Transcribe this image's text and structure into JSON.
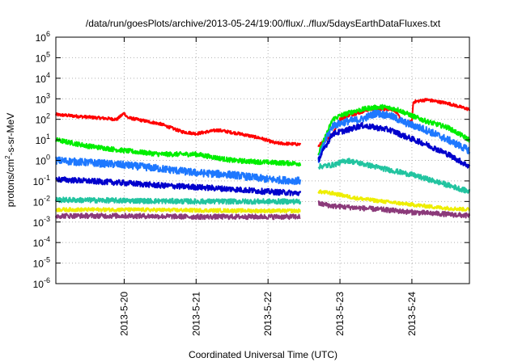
{
  "chart_data": {
    "type": "line",
    "title": "/data/run/goesPlots/archive/2013-05-24/19:00/flux/../flux/5daysEarthDataFluxes.txt",
    "xlabel": "Coordinated Universal Time (UTC)",
    "ylabel": {
      "base": "protons/cm",
      "sup": "2",
      "rest": "-s-sr-MeV"
    },
    "y_scale": "log",
    "y_exponent_range": [
      -6,
      6
    ],
    "y_ticks": [
      {
        "exp": -6,
        "base": "10",
        "sup": "-6"
      },
      {
        "exp": -5,
        "base": "10",
        "sup": "-5"
      },
      {
        "exp": -4,
        "base": "10",
        "sup": "-4"
      },
      {
        "exp": -3,
        "base": "10",
        "sup": "-3"
      },
      {
        "exp": -2,
        "base": "10",
        "sup": "-2"
      },
      {
        "exp": -1,
        "base": "10",
        "sup": "-1"
      },
      {
        "exp": 0,
        "base": "10",
        "sup": "0"
      },
      {
        "exp": 1,
        "base": "10",
        "sup": "1"
      },
      {
        "exp": 2,
        "base": "10",
        "sup": "2"
      },
      {
        "exp": 3,
        "base": "10",
        "sup": "3"
      },
      {
        "exp": 4,
        "base": "10",
        "sup": "4"
      },
      {
        "exp": 5,
        "base": "10",
        "sup": "5"
      },
      {
        "exp": 6,
        "base": "10",
        "sup": "6"
      }
    ],
    "x_range_days": [
      -0.95,
      4.8
    ],
    "x_ticks": [
      {
        "day": 0,
        "label": "2013-5-20"
      },
      {
        "day": 1,
        "label": "2013-5-21"
      },
      {
        "day": 2,
        "label": "2013-5-22"
      },
      {
        "day": 3,
        "label": "2013-5-23"
      },
      {
        "day": 4,
        "label": "2013-5-24"
      }
    ],
    "grid": true,
    "data_gap_days": [
      2.45,
      2.7
    ],
    "series": [
      {
        "color": "#ff0000",
        "noise": 0.05,
        "points": [
          [
            -0.95,
            170
          ],
          [
            -0.1,
            100
          ],
          [
            0.0,
            200
          ],
          [
            0.05,
            120
          ],
          [
            0.5,
            60
          ],
          [
            0.8,
            25
          ],
          [
            1.0,
            20
          ],
          [
            1.3,
            30
          ],
          [
            1.6,
            20
          ],
          [
            1.9,
            12
          ],
          [
            2.1,
            7
          ],
          [
            2.45,
            6
          ],
          [
            2.7,
            5
          ],
          [
            2.9,
            20
          ],
          [
            3.0,
            100
          ],
          [
            3.1,
            150
          ],
          [
            3.25,
            200
          ],
          [
            3.4,
            300
          ],
          [
            3.6,
            320
          ],
          [
            3.75,
            300
          ],
          [
            3.85,
            100
          ],
          [
            3.92,
            60
          ],
          [
            4.0,
            80
          ],
          [
            4.02,
            700
          ],
          [
            4.2,
            900
          ],
          [
            4.5,
            600
          ],
          [
            4.8,
            300
          ]
        ]
      },
      {
        "color": "#00ee00",
        "noise": 0.07,
        "points": [
          [
            -0.95,
            10
          ],
          [
            -0.5,
            5
          ],
          [
            0.0,
            3
          ],
          [
            0.5,
            2
          ],
          [
            1.0,
            2
          ],
          [
            1.5,
            1
          ],
          [
            2.0,
            0.8
          ],
          [
            2.45,
            0.7
          ],
          [
            2.7,
            2
          ],
          [
            2.8,
            15
          ],
          [
            2.9,
            100
          ],
          [
            3.0,
            150
          ],
          [
            3.2,
            250
          ],
          [
            3.4,
            350
          ],
          [
            3.6,
            400
          ],
          [
            3.8,
            300
          ],
          [
            4.0,
            150
          ],
          [
            4.2,
            80
          ],
          [
            4.5,
            40
          ],
          [
            4.8,
            10
          ]
        ]
      },
      {
        "color": "#1e78ff",
        "noise": 0.1,
        "points": [
          [
            -0.95,
            1
          ],
          [
            0.0,
            0.6
          ],
          [
            0.5,
            0.4
          ],
          [
            1.0,
            0.25
          ],
          [
            1.5,
            0.2
          ],
          [
            2.0,
            0.12
          ],
          [
            2.45,
            0.1
          ],
          [
            2.7,
            1
          ],
          [
            2.8,
            10
          ],
          [
            2.9,
            50
          ],
          [
            3.1,
            80
          ],
          [
            3.3,
            100
          ],
          [
            3.5,
            200
          ],
          [
            3.7,
            150
          ],
          [
            3.9,
            70
          ],
          [
            4.2,
            30
          ],
          [
            4.5,
            10
          ],
          [
            4.8,
            3
          ]
        ]
      },
      {
        "color": "#0000cc",
        "noise": 0.07,
        "points": [
          [
            -0.95,
            0.12
          ],
          [
            0.0,
            0.08
          ],
          [
            0.5,
            0.06
          ],
          [
            1.0,
            0.05
          ],
          [
            1.5,
            0.04
          ],
          [
            2.0,
            0.03
          ],
          [
            2.45,
            0.025
          ],
          [
            2.7,
            1
          ],
          [
            2.8,
            5
          ],
          [
            2.9,
            20
          ],
          [
            3.1,
            30
          ],
          [
            3.3,
            50
          ],
          [
            3.5,
            40
          ],
          [
            3.7,
            30
          ],
          [
            3.9,
            15
          ],
          [
            4.2,
            6
          ],
          [
            4.5,
            2
          ],
          [
            4.8,
            0.5
          ]
        ]
      },
      {
        "color": "#22c4a0",
        "noise": 0.06,
        "points": [
          [
            -0.95,
            0.012
          ],
          [
            0.0,
            0.011
          ],
          [
            1.0,
            0.01
          ],
          [
            2.0,
            0.01
          ],
          [
            2.45,
            0.01
          ],
          [
            2.7,
            0.5
          ],
          [
            2.9,
            0.6
          ],
          [
            3.1,
            1.0
          ],
          [
            3.3,
            0.7
          ],
          [
            3.6,
            0.4
          ],
          [
            4.0,
            0.2
          ],
          [
            4.4,
            0.08
          ],
          [
            4.8,
            0.03
          ]
        ]
      },
      {
        "color": "#eeee00",
        "noise": 0.04,
        "points": [
          [
            -0.95,
            0.004
          ],
          [
            0.0,
            0.004
          ],
          [
            1.0,
            0.0037
          ],
          [
            2.0,
            0.0035
          ],
          [
            2.45,
            0.0035
          ],
          [
            2.7,
            0.03
          ],
          [
            2.9,
            0.025
          ],
          [
            3.2,
            0.015
          ],
          [
            3.6,
            0.01
          ],
          [
            4.0,
            0.007
          ],
          [
            4.4,
            0.005
          ],
          [
            4.8,
            0.004
          ]
        ]
      },
      {
        "color": "#8b3a7a",
        "noise": 0.05,
        "points": [
          [
            -0.95,
            0.002
          ],
          [
            0.0,
            0.002
          ],
          [
            1.0,
            0.0018
          ],
          [
            2.0,
            0.0018
          ],
          [
            2.45,
            0.0018
          ],
          [
            2.7,
            0.008
          ],
          [
            2.9,
            0.006
          ],
          [
            3.2,
            0.005
          ],
          [
            3.6,
            0.004
          ],
          [
            4.0,
            0.003
          ],
          [
            4.4,
            0.0025
          ],
          [
            4.8,
            0.002
          ]
        ]
      }
    ]
  }
}
